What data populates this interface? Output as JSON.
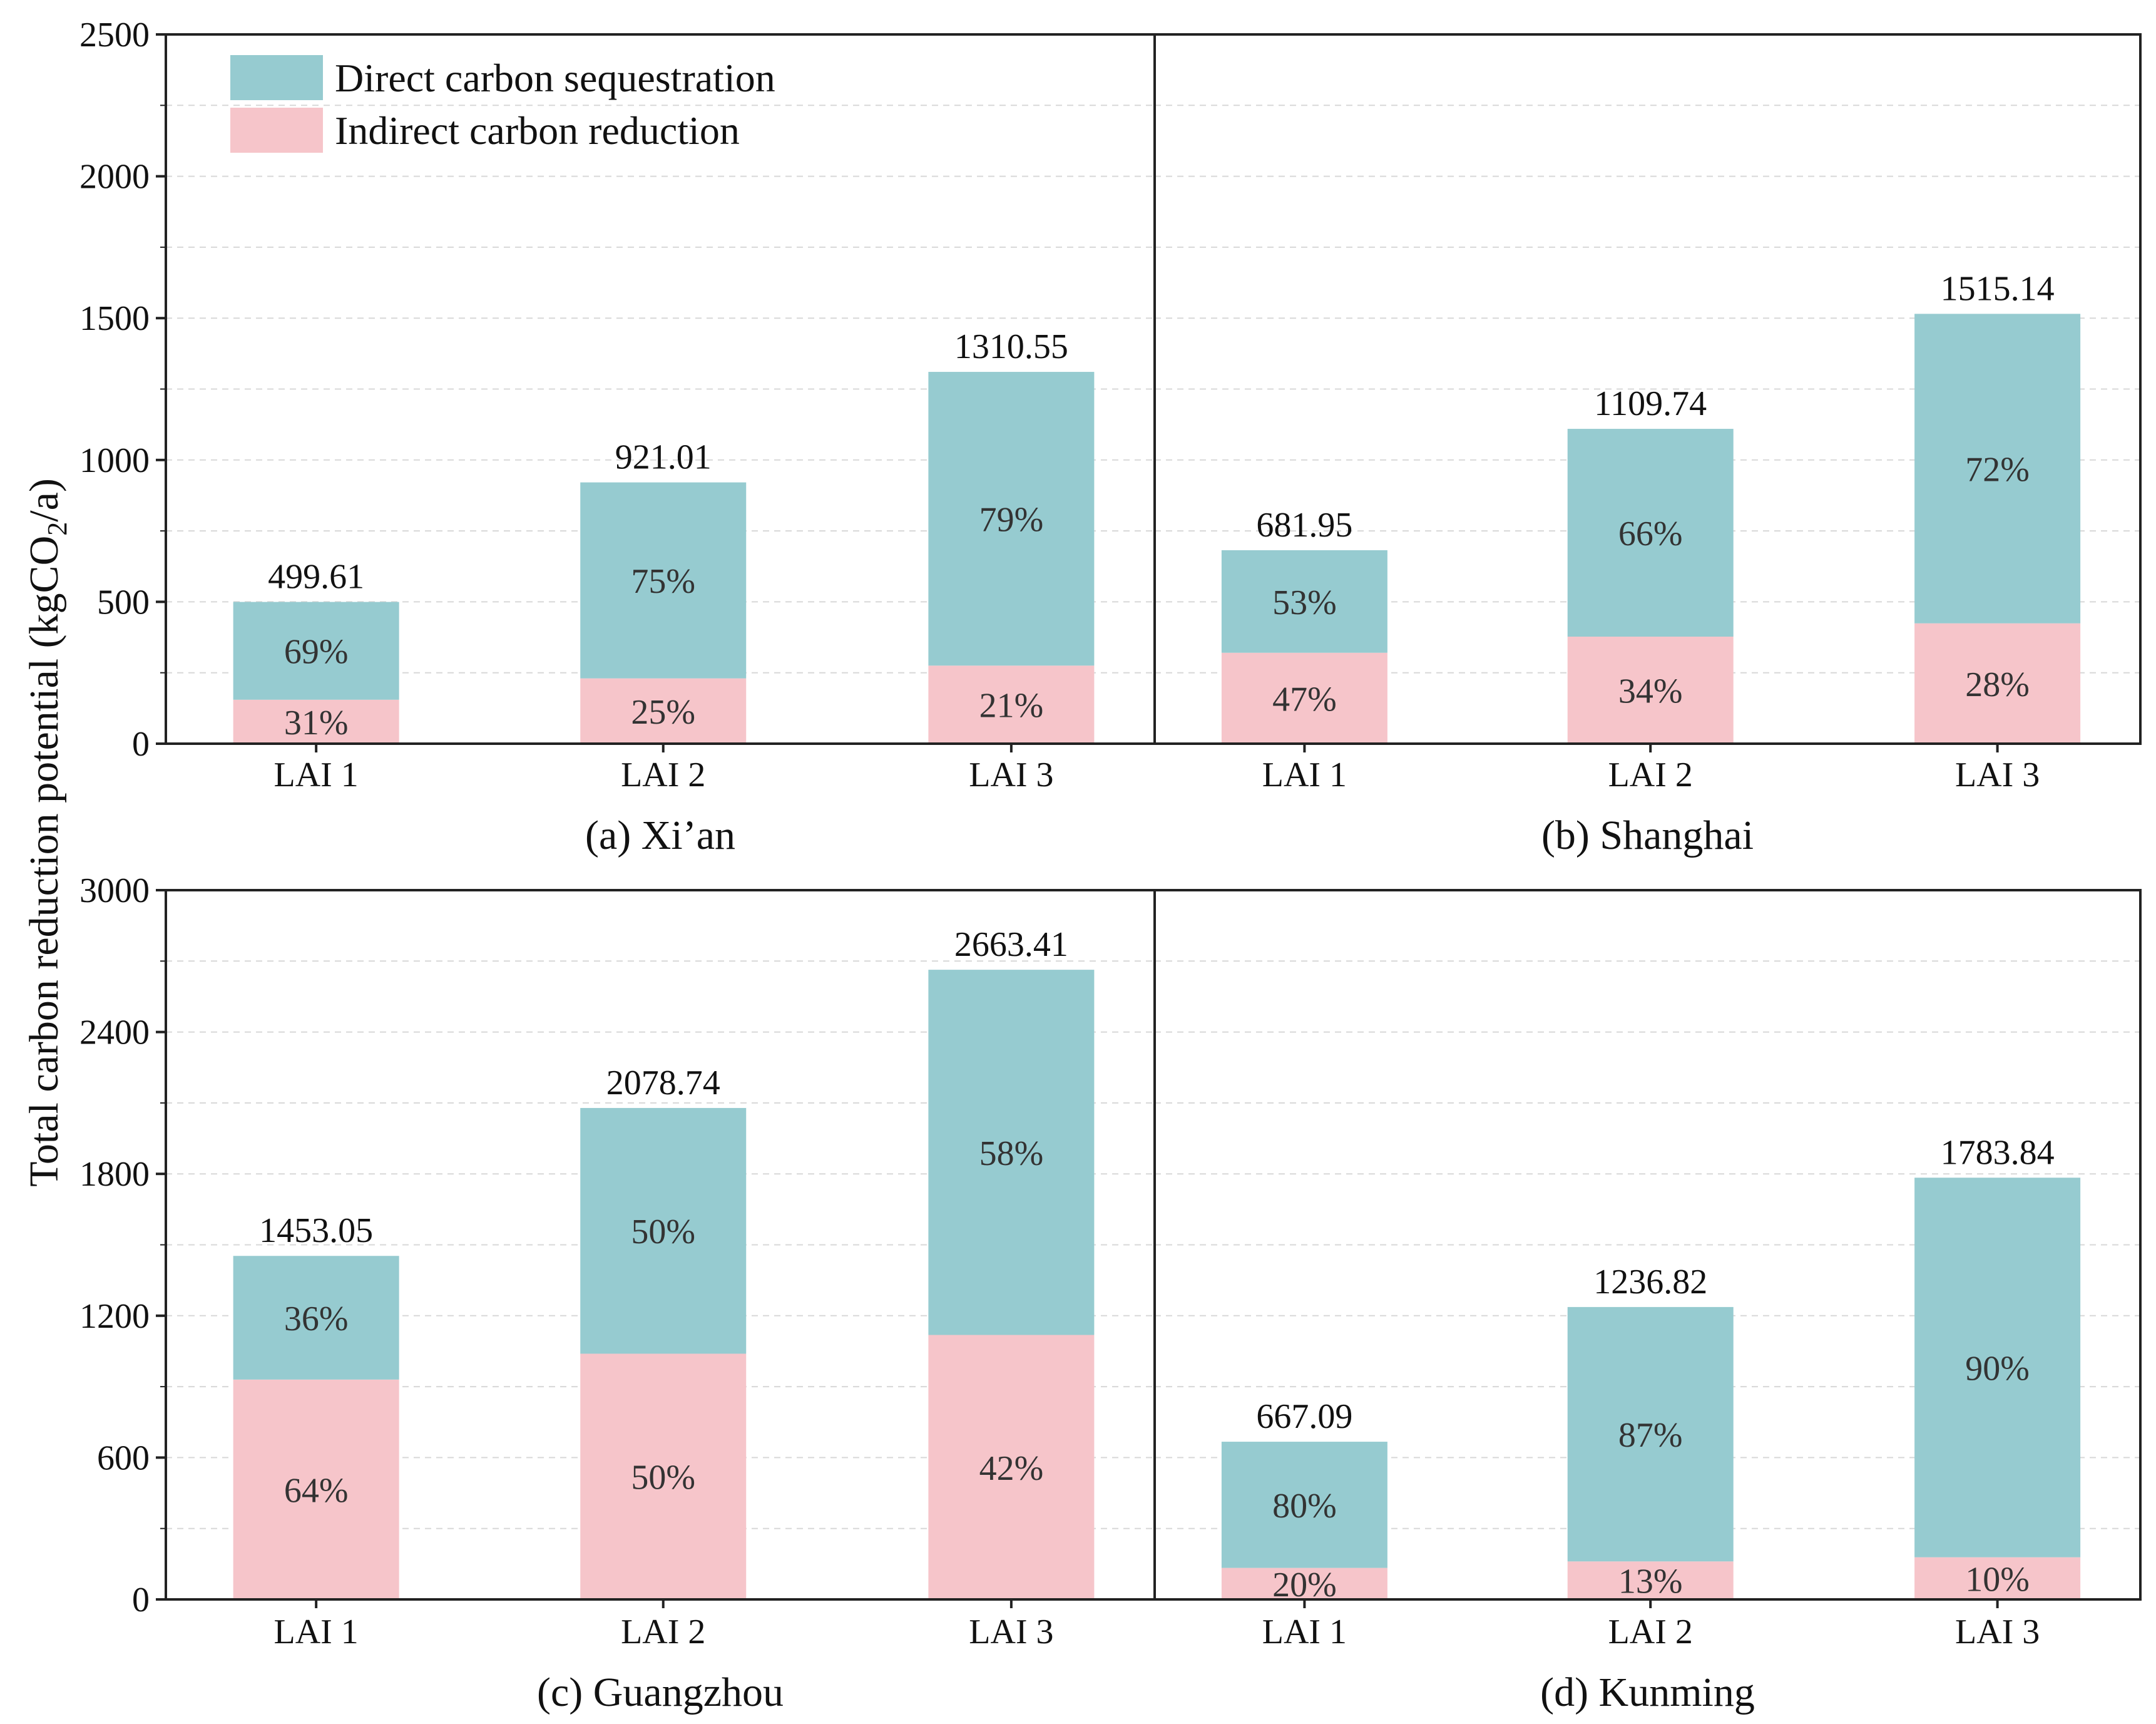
{
  "colors": {
    "direct": "#96cbd0",
    "indirect": "#f6c5ca"
  },
  "legend": {
    "direct": "Direct carbon sequestration",
    "indirect": "Indirect carbon reduction"
  },
  "ylabel_prefix": "Total carbon reduction potential (kgCO",
  "ylabel_sub": "2",
  "ylabel_suffix": "/a)",
  "chart_data": [
    {
      "type": "bar",
      "stacked": true,
      "title": "(a) Xi’an",
      "categories": [
        "LAI 1",
        "LAI 2",
        "LAI 3"
      ],
      "ylim": [
        0,
        2500
      ],
      "yticks": [
        0,
        500,
        1000,
        1500,
        2000,
        2500
      ],
      "ytick_labels": [
        "0",
        "500",
        "1000",
        "1500",
        "2000",
        "2500"
      ],
      "totals": [
        499.61,
        921.01,
        1310.55
      ],
      "total_labels": [
        "499.61",
        "921.01",
        "1310.55"
      ],
      "series": [
        {
          "name": "Indirect carbon reduction",
          "share_labels": [
            "31%",
            "25%",
            "21%"
          ],
          "shares": [
            31,
            25,
            21
          ]
        },
        {
          "name": "Direct carbon sequestration",
          "share_labels": [
            "69%",
            "75%",
            "79%"
          ],
          "shares": [
            69,
            75,
            79
          ]
        }
      ]
    },
    {
      "type": "bar",
      "stacked": true,
      "title": "(b) Shanghai",
      "categories": [
        "LAI 1",
        "LAI 2",
        "LAI 3"
      ],
      "ylim": [
        0,
        2500
      ],
      "yticks": [
        0,
        500,
        1000,
        1500,
        2000,
        2500
      ],
      "totals": [
        681.95,
        1109.74,
        1515.14
      ],
      "total_labels": [
        "681.95",
        "1109.74",
        "1515.14"
      ],
      "series": [
        {
          "name": "Indirect carbon reduction",
          "share_labels": [
            "47%",
            "34%",
            "28%"
          ],
          "shares": [
            47,
            34,
            28
          ]
        },
        {
          "name": "Direct carbon sequestration",
          "share_labels": [
            "53%",
            "66%",
            "72%"
          ],
          "shares": [
            53,
            66,
            72
          ]
        }
      ]
    },
    {
      "type": "bar",
      "stacked": true,
      "title": "(c) Guangzhou",
      "categories": [
        "LAI 1",
        "LAI 2",
        "LAI 3"
      ],
      "ylim": [
        0,
        3000
      ],
      "yticks": [
        0,
        600,
        1200,
        1800,
        2400,
        3000
      ],
      "ytick_labels": [
        "0",
        "600",
        "1200",
        "1800",
        "2400",
        "3000"
      ],
      "totals": [
        1453.05,
        2078.74,
        2663.41
      ],
      "total_labels": [
        "1453.05",
        "2078.74",
        "2663.41"
      ],
      "series": [
        {
          "name": "Indirect carbon reduction",
          "share_labels": [
            "64%",
            "50%",
            "42%"
          ],
          "shares": [
            64,
            50,
            42
          ]
        },
        {
          "name": "Direct carbon sequestration",
          "share_labels": [
            "36%",
            "50%",
            "58%"
          ],
          "shares": [
            36,
            50,
            58
          ]
        }
      ]
    },
    {
      "type": "bar",
      "stacked": true,
      "title": "(d) Kunming",
      "categories": [
        "LAI 1",
        "LAI 2",
        "LAI 3"
      ],
      "ylim": [
        0,
        3000
      ],
      "yticks": [
        0,
        600,
        1200,
        1800,
        2400,
        3000
      ],
      "totals": [
        667.09,
        1236.82,
        1783.84
      ],
      "total_labels": [
        "667.09",
        "1236.82",
        "1783.84"
      ],
      "series": [
        {
          "name": "Indirect carbon reduction",
          "share_labels": [
            "20%",
            "13%",
            "10%"
          ],
          "shares": [
            20,
            13,
            10
          ]
        },
        {
          "name": "Direct carbon sequestration",
          "share_labels": [
            "80%",
            "87%",
            "90%"
          ],
          "shares": [
            80,
            87,
            90
          ]
        }
      ]
    }
  ]
}
